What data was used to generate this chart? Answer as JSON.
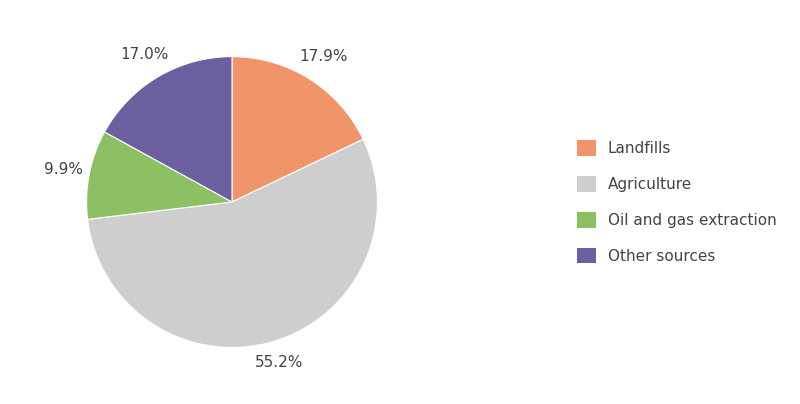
{
  "labels": [
    "Landfills",
    "Agriculture",
    "Oil and gas extraction",
    "Other sources"
  ],
  "values": [
    17.9,
    55.2,
    9.9,
    17.0
  ],
  "colors": [
    "#F0956A",
    "#CECECE",
    "#8DC063",
    "#6B5FA0"
  ],
  "startangle": 90,
  "legend_labels": [
    "Landfills",
    "Agriculture",
    "Oil and gas extraction",
    "Other sources"
  ],
  "background_color": "#ffffff",
  "figsize": [
    8.0,
    4.04
  ],
  "dpi": 100,
  "label_distances": [
    1.18,
    1.15,
    1.18,
    1.18
  ],
  "font_size_pct": 11,
  "font_size_legend": 11,
  "text_color": "#444444"
}
